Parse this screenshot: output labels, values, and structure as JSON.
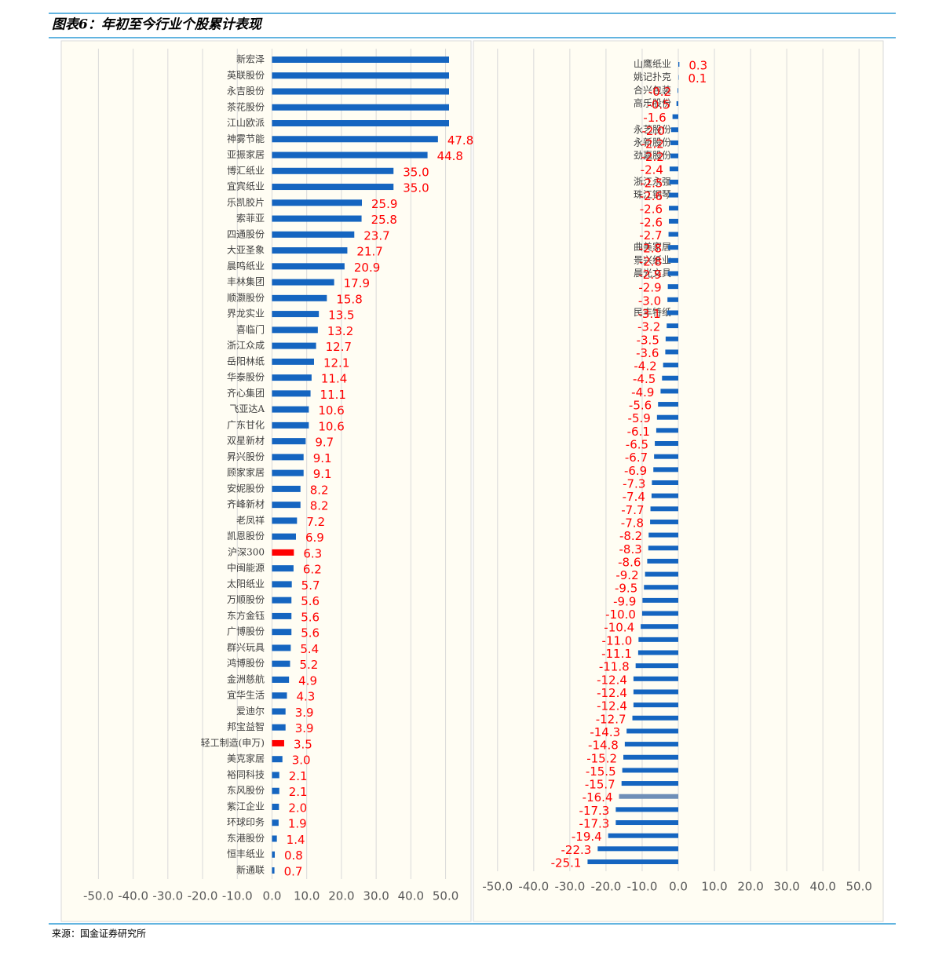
{
  "title": "图表6：年初至今行业个股累计表现",
  "source": "来源：国金证券研究所",
  "chart_data": [
    {
      "type": "barh",
      "categories": [
        "新宏泽",
        "英联股份",
        "永吉股份",
        "茶花股份",
        "江山欧派",
        "神雾节能",
        "亚振家居",
        "博汇纸业",
        "宜宾纸业",
        "乐凯胶片",
        "索菲亚",
        "四通股份",
        "大亚圣象",
        "晨鸣纸业",
        "丰林集团",
        "顺灏股份",
        "界龙实业",
        "喜临门",
        "浙江众成",
        "岳阳林纸",
        "华泰股份",
        "齐心集团",
        "飞亚达A",
        "广东甘化",
        "双星新材",
        "昇兴股份",
        "顾家家居",
        "安妮股份",
        "齐峰新材",
        "老凤祥",
        "凯恩股份",
        "沪深300",
        "中闽能源",
        "太阳纸业",
        "万顺股份",
        "东方金钰",
        "广博股份",
        "群兴玩具",
        "鸿博股份",
        "金洲慈航",
        "宜华生活",
        "爱迪尔",
        "邦宝益智",
        "轻工制造(申万)",
        "美克家居",
        "裕同科技",
        "东风股份",
        "紫江企业",
        "环球印务",
        "东港股份",
        "恒丰纸业",
        "新通联"
      ],
      "values": [
        51,
        51,
        51,
        51,
        51,
        47.8,
        44.8,
        35.0,
        35.0,
        25.9,
        25.8,
        23.7,
        21.7,
        20.9,
        17.9,
        15.8,
        13.5,
        13.2,
        12.7,
        12.1,
        11.4,
        11.1,
        10.6,
        10.6,
        9.7,
        9.1,
        9.1,
        8.2,
        8.2,
        7.2,
        6.9,
        6.3,
        6.2,
        5.7,
        5.6,
        5.6,
        5.6,
        5.4,
        5.2,
        4.9,
        4.3,
        3.9,
        3.9,
        3.5,
        3.0,
        2.1,
        2.1,
        2.0,
        1.9,
        1.4,
        0.8,
        0.7
      ],
      "value_labels": [
        null,
        null,
        null,
        null,
        null,
        "47.8",
        "44.8",
        "35.0",
        "35.0",
        "25.9",
        "25.8",
        "23.7",
        "21.7",
        "20.9",
        "17.9",
        "15.8",
        "13.5",
        "13.2",
        "12.7",
        "12.1",
        "11.4",
        "11.1",
        "10.6",
        "10.6",
        "9.7",
        "9.1",
        "9.1",
        "8.2",
        "8.2",
        "7.2",
        "6.9",
        "6.3",
        "6.2",
        "5.7",
        "5.6",
        "5.6",
        "5.6",
        "5.4",
        "5.2",
        "4.9",
        "4.3",
        "3.9",
        "3.9",
        "3.5",
        "3.0",
        "2.1",
        "2.1",
        "2.0",
        "1.9",
        "1.4",
        "0.8",
        "0.7"
      ],
      "colors": [
        "#1565c0",
        "#1565c0",
        "#1565c0",
        "#1565c0",
        "#1565c0",
        "#1565c0",
        "#1565c0",
        "#1565c0",
        "#1565c0",
        "#1565c0",
        "#1565c0",
        "#1565c0",
        "#1565c0",
        "#1565c0",
        "#1565c0",
        "#1565c0",
        "#1565c0",
        "#1565c0",
        "#1565c0",
        "#1565c0",
        "#1565c0",
        "#1565c0",
        "#1565c0",
        "#1565c0",
        "#1565c0",
        "#1565c0",
        "#1565c0",
        "#1565c0",
        "#1565c0",
        "#1565c0",
        "#1565c0",
        "#ff0000",
        "#1565c0",
        "#1565c0",
        "#1565c0",
        "#1565c0",
        "#1565c0",
        "#1565c0",
        "#1565c0",
        "#1565c0",
        "#1565c0",
        "#1565c0",
        "#1565c0",
        "#ff0000",
        "#1565c0",
        "#1565c0",
        "#1565c0",
        "#1565c0",
        "#1565c0",
        "#1565c0",
        "#1565c0",
        "#1565c0"
      ],
      "xlim": [
        -58,
        51
      ],
      "xticks": [
        {
          "value": -50,
          "label": "-50.0"
        },
        {
          "value": -40,
          "label": "-40.0"
        },
        {
          "value": -30,
          "label": "-30.0"
        },
        {
          "value": -20,
          "label": "-20.0"
        },
        {
          "value": -10,
          "label": "-10.0"
        },
        {
          "value": 0,
          "label": "0.0"
        },
        {
          "value": 10,
          "label": "10.0"
        },
        {
          "value": 20,
          "label": "20.0"
        },
        {
          "value": 30,
          "label": "30.0"
        },
        {
          "value": 40,
          "label": "40.0"
        },
        {
          "value": 50,
          "label": "50.0"
        }
      ],
      "grid": true
    },
    {
      "type": "barh",
      "categories": [
        "山鹰纸业",
        "姚记扑克",
        "合兴包装",
        "高乐股份",
        null,
        "永艺股份",
        "永新股份",
        "劲嘉股份",
        null,
        "浙江永强",
        "珠江钢琴",
        null,
        null,
        null,
        "曲美家居",
        "景兴纸业",
        "晨光文具",
        null,
        null,
        "民丰特纸",
        null,
        null,
        null,
        null,
        null,
        null,
        null,
        null,
        null,
        null,
        null,
        null,
        null,
        null,
        null,
        null,
        null,
        null,
        null,
        null,
        null,
        null,
        null,
        null,
        null,
        null,
        null,
        null,
        null,
        null,
        null,
        null,
        null,
        null,
        null,
        null,
        null,
        null,
        null,
        null,
        null,
        null
      ],
      "values": [
        0.3,
        0.1,
        -0.2,
        -0.5,
        -1.6,
        -2.0,
        -2.2,
        -2.2,
        -2.4,
        -2.5,
        -2.6,
        -2.6,
        -2.6,
        -2.7,
        -2.8,
        -2.8,
        -2.9,
        -2.9,
        -3.0,
        -3.1,
        -3.2,
        -3.5,
        -3.6,
        -4.2,
        -4.5,
        -4.9,
        -5.6,
        -5.9,
        -6.1,
        -6.5,
        -6.7,
        -6.9,
        -7.3,
        -7.4,
        -7.7,
        -7.8,
        -8.2,
        -8.3,
        -8.6,
        -9.2,
        -9.5,
        -9.9,
        -10.0,
        -10.4,
        -11.0,
        -11.1,
        -11.8,
        -12.4,
        -12.4,
        -12.4,
        -12.7,
        -14.3,
        -14.8,
        -15.2,
        -15.5,
        -15.7,
        -16.4,
        -17.3,
        -17.3,
        -19.4,
        -22.3,
        -25.1
      ],
      "value_labels": [
        "0.3",
        "0.1",
        "-0.2",
        "-0.5",
        "-1.6",
        "-2.0",
        "-2.2",
        "-2.2",
        "-2.4",
        "-2.5",
        "-2.6",
        "-2.6",
        "-2.6",
        "-2.7",
        "-2.8",
        "-2.8",
        "-2.9",
        "-2.9",
        "-3.0",
        "-3.1",
        "-3.2",
        "-3.5",
        "-3.6",
        "-4.2",
        "-4.5",
        "-4.9",
        "-5.6",
        "-5.9",
        "-6.1",
        "-6.5",
        "-6.7",
        "-6.9",
        "-7.3",
        "-7.4",
        "-7.7",
        "-7.8",
        "-8.2",
        "-8.3",
        "-8.6",
        "-9.2",
        "-9.5",
        "-9.9",
        "-10.0",
        "-10.4",
        "-11.0",
        "-11.1",
        "-11.8",
        "-12.4",
        "-12.4",
        "-12.4",
        "-12.7",
        "-14.3",
        "-14.8",
        "-15.2",
        "-15.5",
        "-15.7",
        "-16.4",
        "-17.3",
        "-17.3",
        "-19.4",
        "-22.3",
        "-25.1"
      ],
      "colors": [
        "#1565c0",
        "#1565c0",
        "#1565c0",
        "#1565c0",
        "#1565c0",
        "#1565c0",
        "#1565c0",
        "#1565c0",
        "#1565c0",
        "#1565c0",
        "#1565c0",
        "#1565c0",
        "#1565c0",
        "#1565c0",
        "#1565c0",
        "#1565c0",
        "#1565c0",
        "#1565c0",
        "#1565c0",
        "#1565c0",
        "#1565c0",
        "#1565c0",
        "#1565c0",
        "#1565c0",
        "#1565c0",
        "#1565c0",
        "#1565c0",
        "#1565c0",
        "#1565c0",
        "#1565c0",
        "#1565c0",
        "#1565c0",
        "#1565c0",
        "#1565c0",
        "#1565c0",
        "#1565c0",
        "#1565c0",
        "#1565c0",
        "#1565c0",
        "#1565c0",
        "#1565c0",
        "#1565c0",
        "#1565c0",
        "#1565c0",
        "#1565c0",
        "#1565c0",
        "#1565c0",
        "#1565c0",
        "#1565c0",
        "#1565c0",
        "#1565c0",
        "#1565c0",
        "#1565c0",
        "#1565c0",
        "#1565c0",
        "#1565c0",
        "#6f8fb8",
        "#1565c0",
        "#1565c0",
        "#1565c0",
        "#1565c0",
        "#1565c0"
      ],
      "xlim": [
        -55.6,
        55.6
      ],
      "xticks": [
        {
          "value": -50,
          "label": "-50.0"
        },
        {
          "value": -40,
          "label": "-40.0"
        },
        {
          "value": -30,
          "label": "-30.0"
        },
        {
          "value": -20,
          "label": "-20.0"
        },
        {
          "value": -10,
          "label": "-10.0"
        },
        {
          "value": 0,
          "label": "0.0"
        },
        {
          "value": 10,
          "label": "10.0"
        },
        {
          "value": 20,
          "label": "20.0"
        },
        {
          "value": 30,
          "label": "30.0"
        },
        {
          "value": 40,
          "label": "40.0"
        },
        {
          "value": 50,
          "label": "50.0"
        }
      ],
      "grid": true
    }
  ]
}
